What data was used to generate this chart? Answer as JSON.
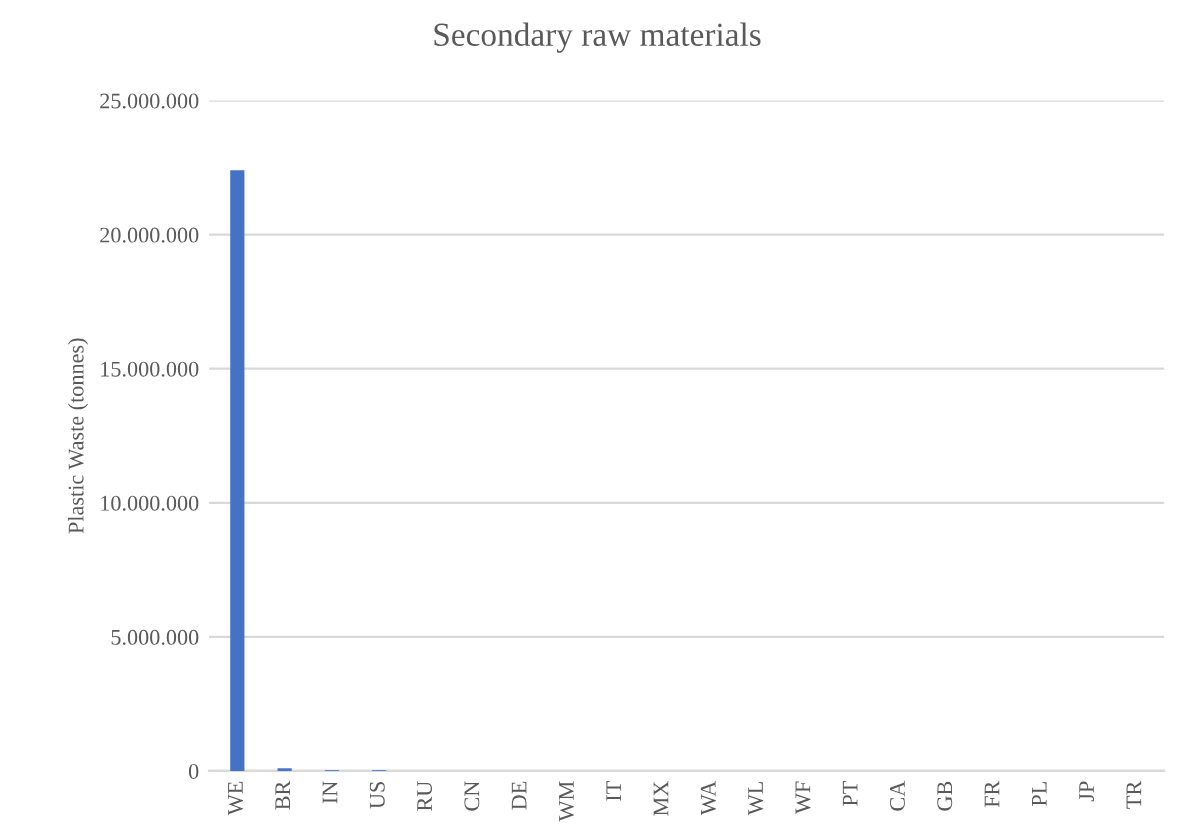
{
  "chart_data": {
    "type": "bar",
    "title": "Secondary raw materials",
    "ylabel": "Plastic Waste (tonnes)",
    "categories": [
      "WE",
      "BR",
      "IN",
      "US",
      "RU",
      "CN",
      "DE",
      "WM",
      "IT",
      "MX",
      "WA",
      "WL",
      "WF",
      "PT",
      "CA",
      "GB",
      "FR",
      "PL",
      "JP",
      "TR"
    ],
    "values": [
      22400000,
      100000,
      30000,
      30000,
      0,
      0,
      0,
      0,
      0,
      0,
      0,
      0,
      0,
      0,
      0,
      0,
      0,
      0,
      0,
      0
    ],
    "color": "#4472c4",
    "ylim": [
      0,
      25000000
    ],
    "yticks": [
      0,
      {
        "value": 5000000,
        "label": "5.000.000"
      },
      {
        "value": 10000000,
        "label": "10.000.000"
      },
      {
        "value": 15000000,
        "label": "15.000.000"
      },
      {
        "value": 20000000,
        "label": "20.000.000"
      },
      {
        "value": 25000000,
        "label": "25.000.000"
      }
    ],
    "grid": "y"
  }
}
